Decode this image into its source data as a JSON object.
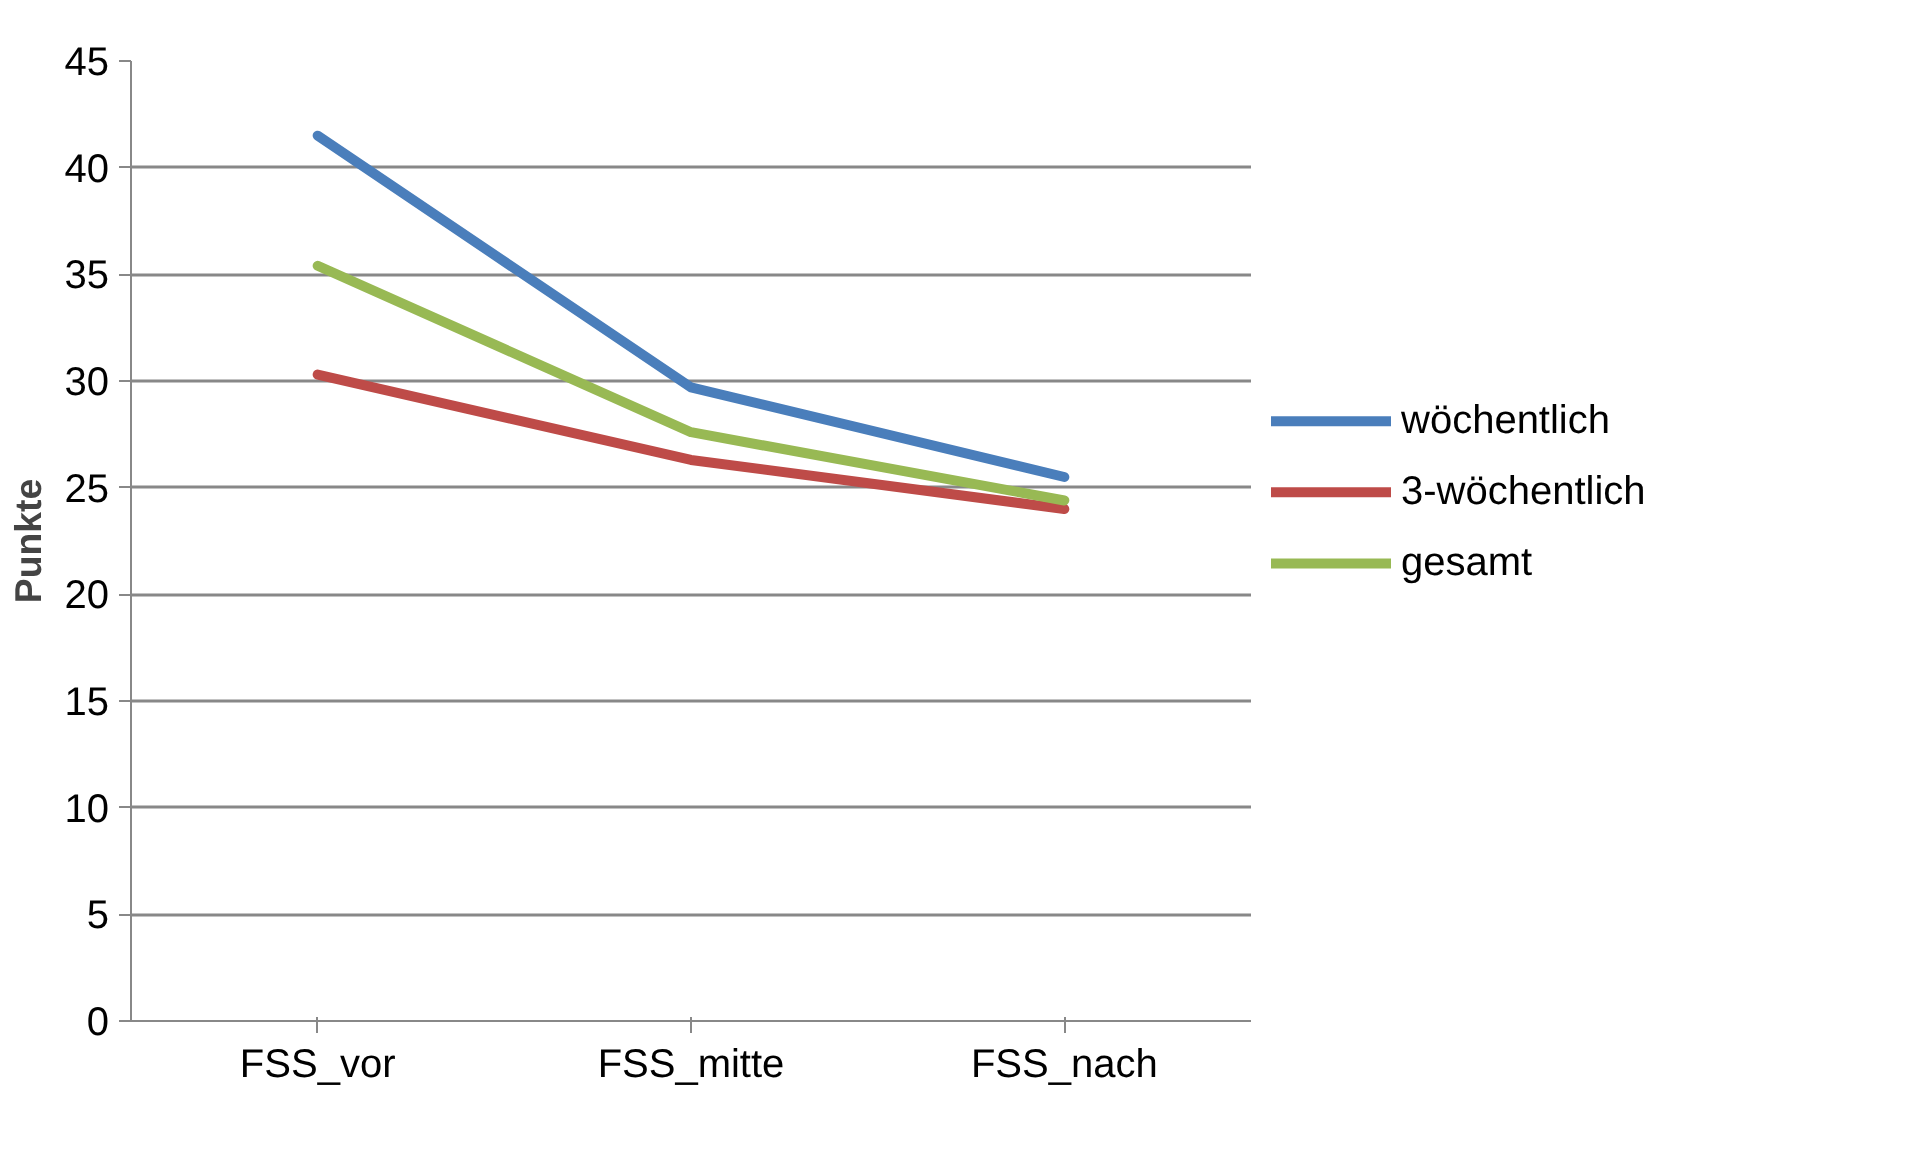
{
  "chart_data": {
    "type": "line",
    "ylabel": "Punkte",
    "categories": [
      "FSS_vor",
      "FSS_mitte",
      "FSS_nach"
    ],
    "series": [
      {
        "name": "wöchentlich",
        "color": "#4a7ebb",
        "values": [
          41.5,
          29.7,
          25.5
        ]
      },
      {
        "name": "3-wöchentlich",
        "color": "#be4b48",
        "values": [
          30.3,
          26.3,
          24.0
        ]
      },
      {
        "name": "gesamt",
        "color": "#98b954",
        "values": [
          35.4,
          27.6,
          24.4
        ]
      }
    ],
    "ylim": [
      0,
      45
    ],
    "yticks": [
      0,
      5,
      10,
      15,
      20,
      25,
      30,
      35,
      40,
      45
    ],
    "grid": "y",
    "legend": "right",
    "marker": "none",
    "line_style": "solid"
  }
}
